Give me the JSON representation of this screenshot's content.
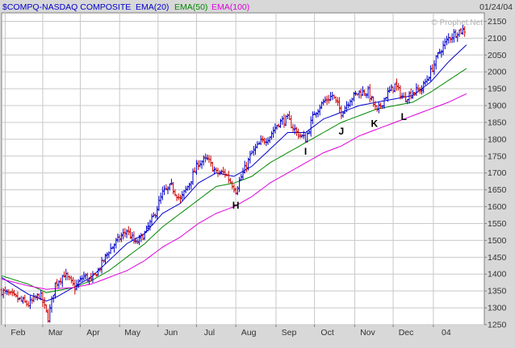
{
  "header": {
    "symbol": "$COMPQ-NASDAQ COMPOSITE",
    "date": "01/24/04",
    "watermark": "© Prophet.Net"
  },
  "chart_data": {
    "type": "ohlc",
    "title": "$COMPQ-NASDAQ COMPOSITE",
    "date_shown": "01/24/04",
    "ylim": [
      1250,
      2175
    ],
    "y_ticks": [
      1250,
      1300,
      1350,
      1400,
      1450,
      1500,
      1550,
      1600,
      1650,
      1700,
      1750,
      1800,
      1850,
      1900,
      1950,
      2000,
      2050,
      2100,
      2150
    ],
    "y_axis_position": "right",
    "x_range_weeks": [
      0,
      54
    ],
    "x_ticks": [
      {
        "label": "Feb",
        "week": 0.4
      },
      {
        "label": "Mar",
        "week": 4.6
      },
      {
        "label": "Apr",
        "week": 8.8
      },
      {
        "label": "May",
        "week": 13.2
      },
      {
        "label": "Jun",
        "week": 17.5
      },
      {
        "label": "Jul",
        "week": 21.8
      },
      {
        "label": "Aug",
        "week": 26.2
      },
      {
        "label": "Sep",
        "week": 30.7
      },
      {
        "label": "Oct",
        "week": 35.0
      },
      {
        "label": "Nov",
        "week": 39.5
      },
      {
        "label": "Dec",
        "week": 43.8
      },
      {
        "label": "04",
        "week": 48.3
      }
    ],
    "grid": true,
    "legend": [
      {
        "name": "EMA(20)",
        "color": "#0000cc"
      },
      {
        "name": "EMA(50)",
        "color": "#008800"
      },
      {
        "name": "EMA(100)",
        "color": "#dd00dd"
      }
    ],
    "price_anchor_points": [
      [
        0,
        1350
      ],
      [
        1.5,
        1330
      ],
      [
        3,
        1310
      ],
      [
        4.3,
        1340
      ],
      [
        5.2,
        1270
      ],
      [
        6,
        1370
      ],
      [
        7,
        1400
      ],
      [
        8.2,
        1360
      ],
      [
        9.2,
        1395
      ],
      [
        10,
        1380
      ],
      [
        11,
        1420
      ],
      [
        12,
        1470
      ],
      [
        13,
        1500
      ],
      [
        14,
        1530
      ],
      [
        15,
        1490
      ],
      [
        16,
        1520
      ],
      [
        17,
        1570
      ],
      [
        18,
        1640
      ],
      [
        19,
        1660
      ],
      [
        20,
        1620
      ],
      [
        21,
        1670
      ],
      [
        22,
        1730
      ],
      [
        23,
        1740
      ],
      [
        24,
        1700
      ],
      [
        25,
        1700
      ],
      [
        26.2,
        1650
      ],
      [
        27,
        1700
      ],
      [
        28,
        1760
      ],
      [
        29,
        1790
      ],
      [
        30,
        1810
      ],
      [
        31,
        1850
      ],
      [
        32,
        1860
      ],
      [
        33,
        1820
      ],
      [
        34,
        1800
      ],
      [
        35,
        1880
      ],
      [
        36,
        1910
      ],
      [
        37,
        1930
      ],
      [
        38,
        1880
      ],
      [
        39,
        1920
      ],
      [
        40,
        1940
      ],
      [
        41,
        1940
      ],
      [
        42,
        1880
      ],
      [
        43,
        1930
      ],
      [
        44,
        1960
      ],
      [
        45,
        1920
      ],
      [
        46,
        1940
      ],
      [
        47,
        1950
      ],
      [
        48,
        2000
      ],
      [
        49,
        2060
      ],
      [
        50,
        2100
      ],
      [
        51,
        2120
      ],
      [
        52,
        2125
      ]
    ],
    "ema_series": [
      {
        "name": "EMA(20)",
        "color": "#0000cc",
        "points": [
          [
            0,
            1390
          ],
          [
            3,
            1340
          ],
          [
            5,
            1320
          ],
          [
            6,
            1330
          ],
          [
            8,
            1360
          ],
          [
            10,
            1390
          ],
          [
            12,
            1440
          ],
          [
            14,
            1490
          ],
          [
            16,
            1520
          ],
          [
            18,
            1580
          ],
          [
            20,
            1610
          ],
          [
            22,
            1670
          ],
          [
            24,
            1700
          ],
          [
            26,
            1690
          ],
          [
            28,
            1720
          ],
          [
            30,
            1770
          ],
          [
            32,
            1820
          ],
          [
            34,
            1820
          ],
          [
            36,
            1860
          ],
          [
            38,
            1880
          ],
          [
            40,
            1900
          ],
          [
            42,
            1910
          ],
          [
            44,
            1920
          ],
          [
            46,
            1930
          ],
          [
            48,
            1970
          ],
          [
            50,
            2030
          ],
          [
            52,
            2080
          ]
        ]
      },
      {
        "name": "EMA(50)",
        "color": "#008800",
        "points": [
          [
            0,
            1395
          ],
          [
            3,
            1370
          ],
          [
            5,
            1345
          ],
          [
            8,
            1360
          ],
          [
            10,
            1380
          ],
          [
            12,
            1410
          ],
          [
            14,
            1450
          ],
          [
            16,
            1490
          ],
          [
            18,
            1540
          ],
          [
            20,
            1580
          ],
          [
            22,
            1620
          ],
          [
            24,
            1660
          ],
          [
            26,
            1670
          ],
          [
            28,
            1690
          ],
          [
            30,
            1730
          ],
          [
            32,
            1760
          ],
          [
            34,
            1790
          ],
          [
            36,
            1820
          ],
          [
            38,
            1850
          ],
          [
            40,
            1870
          ],
          [
            42,
            1890
          ],
          [
            44,
            1900
          ],
          [
            46,
            1910
          ],
          [
            48,
            1940
          ],
          [
            50,
            1975
          ],
          [
            52,
            2010
          ]
        ]
      },
      {
        "name": "EMA(100)",
        "color": "#dd00dd",
        "points": [
          [
            0,
            1385
          ],
          [
            3,
            1365
          ],
          [
            5,
            1355
          ],
          [
            8,
            1360
          ],
          [
            10,
            1370
          ],
          [
            12,
            1390
          ],
          [
            14,
            1410
          ],
          [
            16,
            1440
          ],
          [
            18,
            1480
          ],
          [
            20,
            1510
          ],
          [
            22,
            1550
          ],
          [
            24,
            1580
          ],
          [
            26,
            1600
          ],
          [
            28,
            1630
          ],
          [
            30,
            1670
          ],
          [
            32,
            1700
          ],
          [
            34,
            1730
          ],
          [
            36,
            1760
          ],
          [
            38,
            1780
          ],
          [
            40,
            1810
          ],
          [
            42,
            1830
          ],
          [
            44,
            1850
          ],
          [
            46,
            1870
          ],
          [
            48,
            1890
          ],
          [
            50,
            1910
          ],
          [
            52,
            1935
          ]
        ]
      }
    ],
    "annotations": [
      {
        "label": "H",
        "week": 26.2,
        "price": 1625
      },
      {
        "label": "I",
        "week": 34.0,
        "price": 1785
      },
      {
        "label": "J",
        "week": 38.0,
        "price": 1845
      },
      {
        "label": "K",
        "week": 41.7,
        "price": 1868
      },
      {
        "label": "L",
        "week": 45.0,
        "price": 1888
      }
    ]
  }
}
